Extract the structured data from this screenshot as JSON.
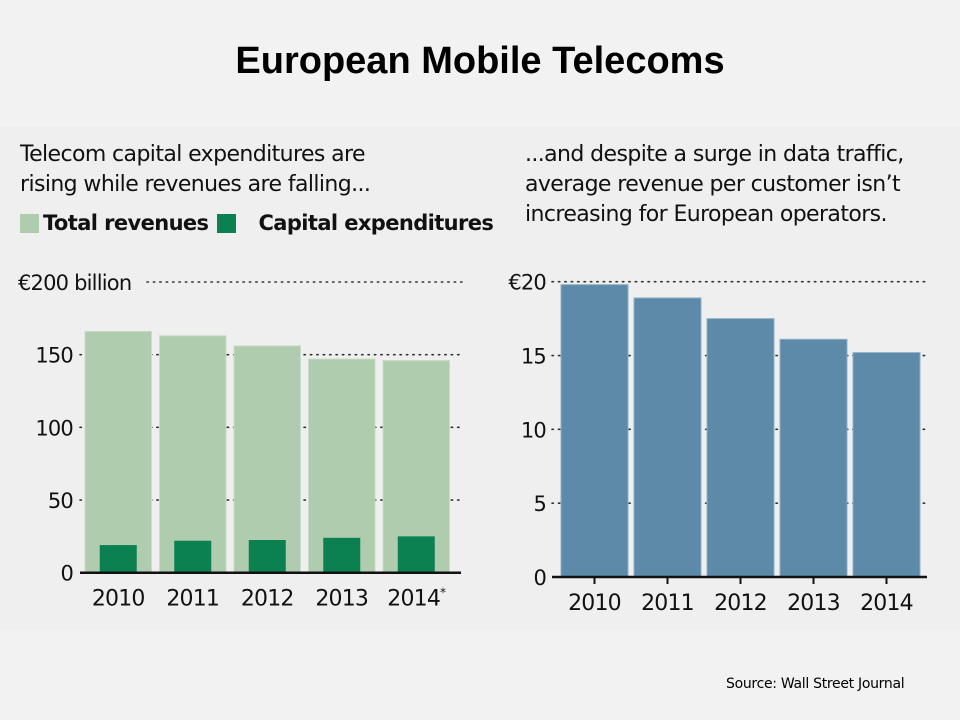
{
  "title": "European Mobile Telecoms",
  "source": "Source: Wall Street Journal",
  "colors": {
    "total_revenues": "#afccaf",
    "capex": "#0b8050",
    "arpu": "#5d8aa8",
    "axis": "#111111",
    "panel_bg": "#efefef"
  },
  "chart_data": [
    {
      "type": "bar",
      "title_lines": [
        "Telecom capital expenditures are",
        "rising while revenues are falling..."
      ],
      "legend": [
        {
          "label": "Total revenues",
          "color": "#afccaf"
        },
        {
          "label": "Capital expenditures",
          "color": "#0b8050"
        }
      ],
      "legend_placement": "top-left",
      "categories": [
        "2010",
        "2011",
        "2012",
        "2013",
        "2014*"
      ],
      "series": [
        {
          "name": "Total revenues",
          "values": [
            166,
            163,
            156,
            147,
            146
          ]
        },
        {
          "name": "Capital expenditures",
          "values": [
            19,
            22,
            22.5,
            24,
            25
          ]
        }
      ],
      "y_ticks": [
        0,
        50,
        100,
        150,
        200
      ],
      "y_tick_labels": [
        "0",
        "50",
        "100",
        "150",
        "€200 billion"
      ],
      "ylim": [
        0,
        200
      ],
      "grid": "dotted",
      "xlabel": "",
      "ylabel": "€ billion"
    },
    {
      "type": "bar",
      "title_lines": [
        "...and despite a surge in data traffic,",
        "average revenue per customer isn’t",
        "increasing for European operators."
      ],
      "categories": [
        "2010",
        "2011",
        "2012",
        "2013",
        "2014"
      ],
      "series": [
        {
          "name": "Average revenue per customer",
          "values": [
            19.8,
            18.9,
            17.5,
            16.1,
            15.2
          ]
        }
      ],
      "y_ticks": [
        0,
        5,
        10,
        15,
        20
      ],
      "y_tick_labels": [
        "0",
        "5",
        "10",
        "15",
        "€20"
      ],
      "ylim": [
        0,
        20
      ],
      "grid": "dotted",
      "xlabel": "",
      "ylabel": "€"
    }
  ]
}
